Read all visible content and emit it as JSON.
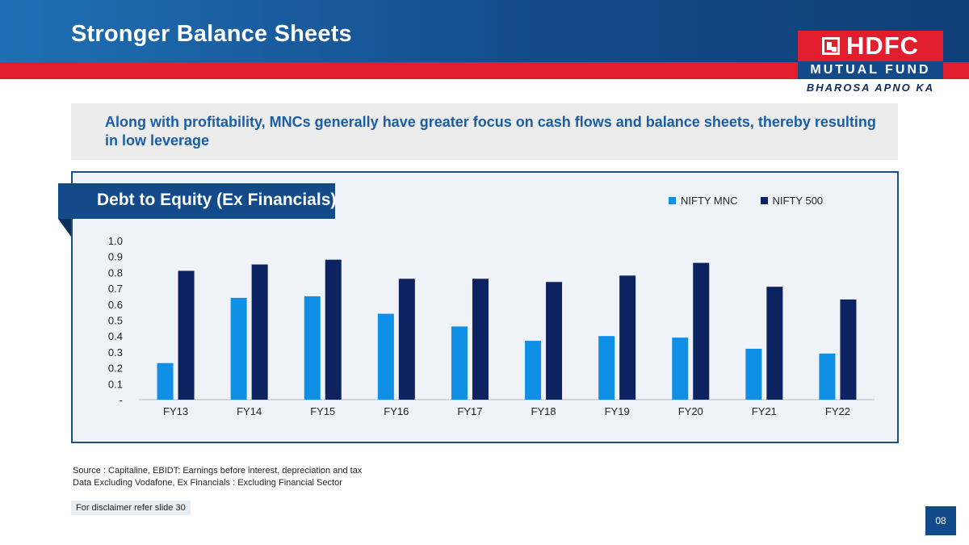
{
  "slide": {
    "title": "Stronger Balance Sheets",
    "callout": "Along with profitability, MNCs generally have greater focus on cash flows and balance sheets, thereby resulting in low leverage",
    "source_line1": "Source : Capitaline, EBIDT: Earnings before interest, depreciation and tax",
    "source_line2": "Data Excluding Vodafone, Ex Financials : Excluding Financial Sector",
    "disclaimer": "For disclaimer refer slide 30",
    "page_number": "08"
  },
  "logo": {
    "brand": "HDFC",
    "line2": "MUTUAL FUND",
    "tagline": "BHAROSA APNO KA"
  },
  "colors": {
    "header": "#134b8a",
    "accent_red": "#e01e2d",
    "series_mnc": "#0f8fe6",
    "series_500": "#0d2260"
  },
  "chart_data": {
    "type": "bar",
    "title": "Debt to Equity (Ex Financials)",
    "categories": [
      "FY13",
      "FY14",
      "FY15",
      "FY16",
      "FY17",
      "FY18",
      "FY19",
      "FY20",
      "FY21",
      "FY22"
    ],
    "series": [
      {
        "name": "NIFTY MNC",
        "values": [
          0.23,
          0.64,
          0.65,
          0.54,
          0.46,
          0.37,
          0.4,
          0.39,
          0.32,
          0.29
        ]
      },
      {
        "name": "NIFTY 500",
        "values": [
          0.81,
          0.85,
          0.88,
          0.76,
          0.76,
          0.74,
          0.78,
          0.86,
          0.71,
          0.63
        ]
      }
    ],
    "yticks": [
      "-",
      "0.1",
      "0.2",
      "0.3",
      "0.4",
      "0.5",
      "0.6",
      "0.7",
      "0.8",
      "0.9",
      "1.0"
    ],
    "ylim": [
      0,
      1.0
    ],
    "grid": false,
    "legend_position": "top-right"
  }
}
